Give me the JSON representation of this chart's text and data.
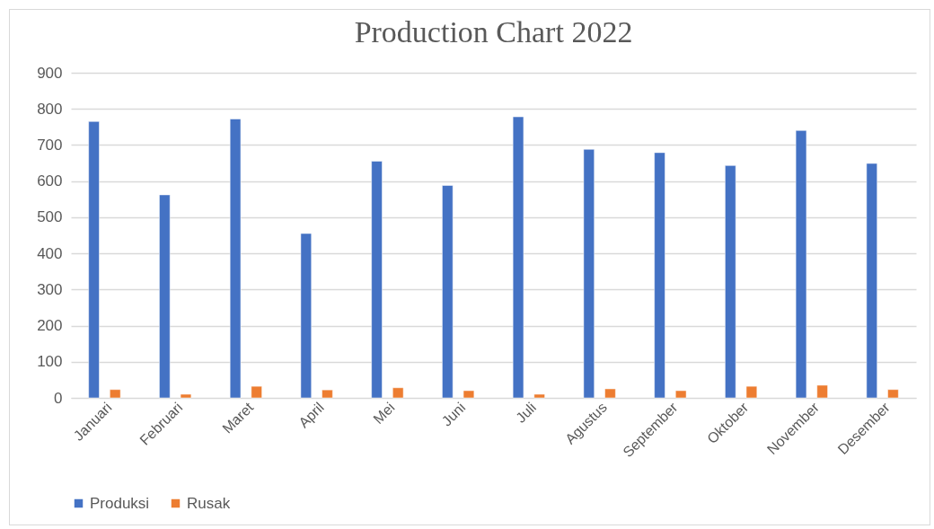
{
  "chart_data": {
    "type": "bar",
    "title": "Production Chart 2022",
    "categories": [
      "Januari",
      "Februari",
      "Maret",
      "April",
      "Mei",
      "Juni",
      "Juli",
      "Agustus",
      "September",
      "Oktober",
      "November",
      "Desember"
    ],
    "series": [
      {
        "name": "Produksi",
        "color": "#4472c4",
        "values": [
          765,
          562,
          772,
          455,
          655,
          588,
          778,
          688,
          679,
          643,
          740,
          649
        ]
      },
      {
        "name": "Rusak",
        "color": "#ed7d31",
        "values": [
          23,
          10,
          32,
          22,
          28,
          20,
          10,
          25,
          20,
          32,
          35,
          23
        ]
      }
    ],
    "ylim": [
      0,
      900
    ],
    "yticks": [
      0,
      100,
      200,
      300,
      400,
      500,
      600,
      700,
      800,
      900
    ],
    "grid": "y",
    "legend": "bottom"
  }
}
